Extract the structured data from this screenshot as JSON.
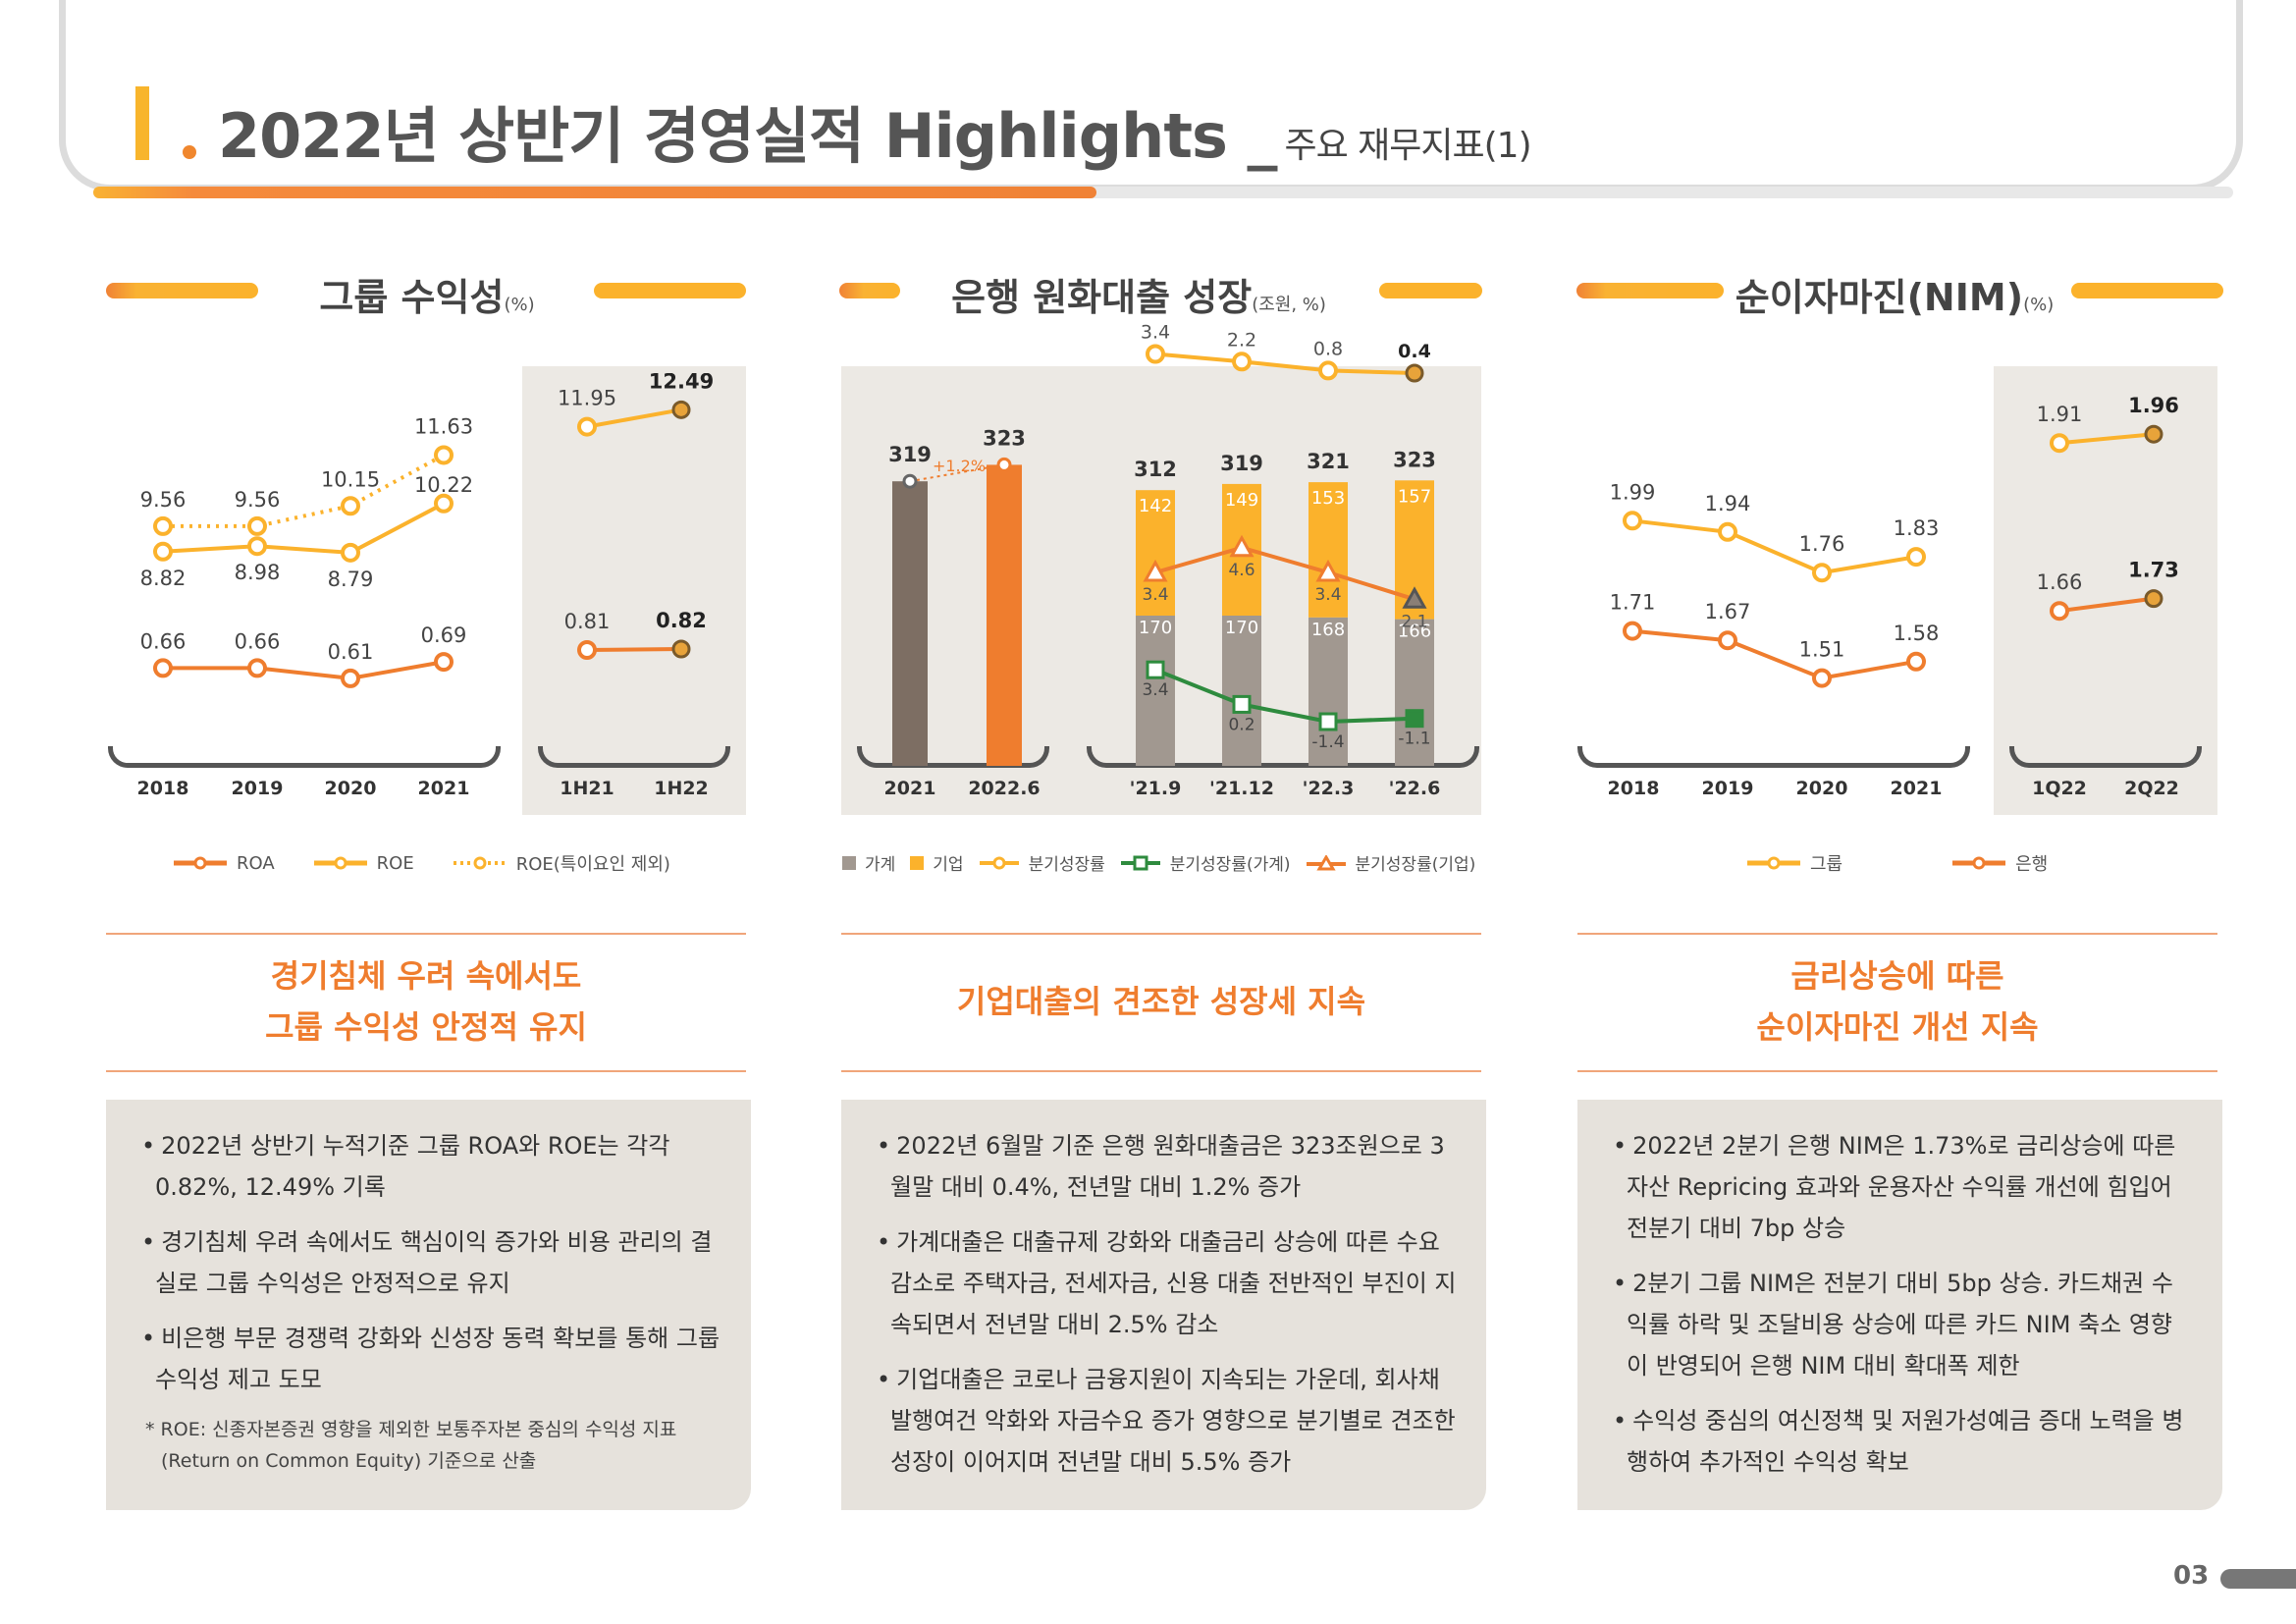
{
  "header": {
    "title": "2022년 상반기 경영실적 Highlights _",
    "subtitle": "주요 재무지표(1)"
  },
  "page_number": "03",
  "colors": {
    "orange": "#ef7d2e",
    "yellow": "#fbb22c",
    "gray_brown": "#7d6e63",
    "green": "#2e8b3e",
    "stack_gray": "#a19890"
  },
  "sections": [
    {
      "title": "그룹 수익성",
      "unit": "(%)",
      "headline": [
        "경기침체 우려 속에서도",
        "그룹 수익성 안정적 유지"
      ],
      "bullets": [
        "2022년 상반기 누적기준 그룹 ROA와 ROE는 각각 0.82%, 12.49% 기록",
        "경기침체 우려 속에서도 핵심이익 증가와 비용 관리의 결실로 그룹 수익성은 안정적으로 유지",
        "비은행 부문 경쟁력 강화와 신성장 동력 확보를 통해 그룹 수익성 제고 도모"
      ],
      "note": "* ROE: 신종자본증권 영향을 제외한 보통주자본 중심의 수익성 지표 (Return on Common Equity) 기준으로 산출"
    },
    {
      "title": "은행 원화대출 성장",
      "unit": "(조원, %)",
      "headline": [
        "기업대출의 견조한 성장세 지속"
      ],
      "bullets": [
        "2022년 6월말 기준 은행 원화대출금은 323조원으로 3월말 대비 0.4%, 전년말 대비 1.2% 증가",
        "가계대출은 대출규제 강화와 대출금리 상승에 따른 수요 감소로 주택자금, 전세자금, 신용 대출 전반적인 부진이 지속되면서 전년말 대비 2.5% 감소",
        "기업대출은 코로나 금융지원이 지속되는 가운데, 회사채 발행여건 악화와 자금수요 증가 영향으로 분기별로 견조한 성장이 이어지며 전년말 대비 5.5% 증가"
      ]
    },
    {
      "title": "순이자마진(NIM)",
      "unit": "(%)",
      "headline": [
        "금리상승에 따른",
        "순이자마진 개선 지속"
      ],
      "bullets": [
        "2022년 2분기 은행 NIM은 1.73%로 금리상승에 따른 자산 Repricing 효과와 운용자산 수익률 개선에 힘입어 전분기 대비 7bp 상승",
        "2분기 그룹 NIM은 전분기 대비 5bp 상승. 카드채권 수익률 하락 및 조달비용 상승에 따른 카드 NIM 축소 영향이 반영되어 은행 NIM 대비 확대폭 제한",
        "수익성 중심의 여신정책 및 저원가성예금 증대 노력을 병행하여 추가적인 수익성 확보"
      ]
    }
  ],
  "chart_data": [
    {
      "type": "line",
      "title": "그룹 수익성",
      "unit": "(%)",
      "categories": [
        "2018",
        "2019",
        "2020",
        "2021"
      ],
      "highlight_categories": [
        "1H21",
        "1H22"
      ],
      "series": [
        {
          "name": "ROA",
          "values": [
            0.66,
            0.66,
            0.61,
            0.69
          ],
          "highlight_values": [
            0.81,
            0.82
          ],
          "labels": [
            "0.66",
            "0.66",
            "0.61",
            "0.69"
          ],
          "highlight_labels": [
            "0.81",
            "0.82"
          ]
        },
        {
          "name": "ROE",
          "values": [
            8.82,
            8.98,
            8.79,
            10.22
          ],
          "highlight_values": [
            11.95,
            12.49
          ],
          "labels": [
            "8.82",
            "8.98",
            "8.79",
            "10.22"
          ],
          "highlight_labels": [
            "11.95",
            "12.49"
          ]
        },
        {
          "name": "ROE(특이요인 제외)",
          "values": [
            9.56,
            9.56,
            10.15,
            11.63
          ],
          "labels": [
            "9.56",
            "9.56",
            "10.15",
            "11.63"
          ]
        }
      ]
    },
    {
      "type": "bar",
      "title": "은행 원화대출 성장",
      "unit": "(조원, %)",
      "annual": {
        "categories": [
          "2021",
          "2022.6"
        ],
        "values": [
          319,
          323
        ],
        "labels": [
          "319",
          "323"
        ],
        "growth_label": "+1.2%"
      },
      "quarterly": {
        "categories": [
          "'21.9",
          "'21.12",
          "'22.3",
          "'22.6"
        ],
        "total": [
          312,
          319,
          321,
          323
        ],
        "total_labels": [
          "312",
          "319",
          "321",
          "323"
        ],
        "series": [
          {
            "name": "가계",
            "values": [
              170,
              170,
              168,
              166
            ],
            "labels": [
              "170",
              "170",
              "168",
              "166"
            ]
          },
          {
            "name": "기업",
            "values": [
              142,
              149,
              153,
              157
            ],
            "labels": [
              "142",
              "149",
              "153",
              "157"
            ]
          },
          {
            "name": "분기성장률",
            "values": [
              3.4,
              2.2,
              0.8,
              0.4
            ],
            "labels": [
              "3.4",
              "2.2",
              "0.8",
              "0.4"
            ]
          },
          {
            "name": "분기성장률(가계)",
            "values": [
              3.4,
              0.2,
              -1.4,
              -1.1
            ],
            "labels": [
              "3.4",
              "0.2",
              "-1.4",
              "-1.1"
            ]
          },
          {
            "name": "분기성장률(기업)",
            "values": [
              3.4,
              4.6,
              3.4,
              2.1
            ],
            "labels": [
              "3.4",
              "4.6",
              "3.4",
              "2.1"
            ]
          }
        ]
      }
    },
    {
      "type": "line",
      "title": "순이자마진(NIM)",
      "unit": "(%)",
      "categories": [
        "2018",
        "2019",
        "2020",
        "2021"
      ],
      "highlight_categories": [
        "1Q22",
        "2Q22"
      ],
      "series": [
        {
          "name": "그룹",
          "values": [
            1.99,
            1.94,
            1.76,
            1.83
          ],
          "highlight_values": [
            1.91,
            1.96
          ],
          "labels": [
            "1.99",
            "1.94",
            "1.76",
            "1.83"
          ],
          "highlight_labels": [
            "1.91",
            "1.96"
          ]
        },
        {
          "name": "은행",
          "values": [
            1.71,
            1.67,
            1.51,
            1.58
          ],
          "highlight_values": [
            1.66,
            1.73
          ],
          "labels": [
            "1.71",
            "1.67",
            "1.51",
            "1.58"
          ],
          "highlight_labels": [
            "1.66",
            "1.73"
          ]
        }
      ]
    }
  ]
}
